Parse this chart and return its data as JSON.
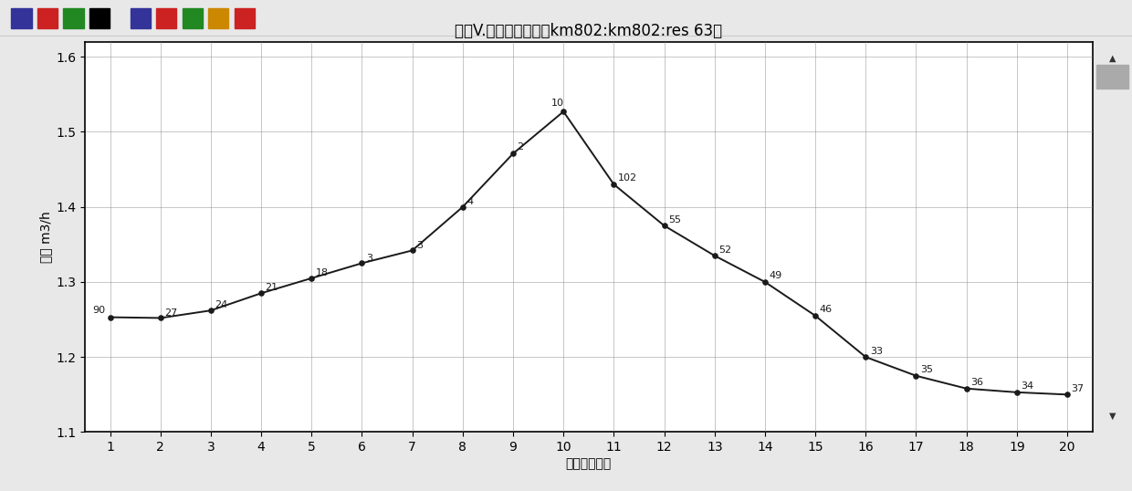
{
  "title": "流量V.胀板单元序号（km802:km802:res 63）",
  "xlabel": "胀板单元序号",
  "ylabel": "流量 m3/h",
  "xlim": [
    0.5,
    20.5
  ],
  "ylim": [
    1.1,
    1.62
  ],
  "ytick_vals": [
    1.1,
    1.2,
    1.3,
    1.4,
    1.5,
    1.6
  ],
  "ytick_labels": [
    "1 1",
    "1 2",
    "1 3",
    "1 4",
    "1 5",
    "1 6"
  ],
  "xticks": [
    1,
    2,
    3,
    4,
    5,
    6,
    7,
    8,
    9,
    10,
    11,
    12,
    13,
    14,
    15,
    16,
    17,
    18,
    19,
    20
  ],
  "x_data": [
    1,
    2,
    3,
    4,
    5,
    6,
    7,
    8,
    9,
    10,
    11,
    12,
    13,
    14,
    15,
    16,
    17,
    18,
    19,
    20
  ],
  "y_data": [
    1.253,
    1.252,
    1.262,
    1.285,
    1.305,
    1.325,
    1.342,
    1.4,
    1.471,
    1.527,
    1.43,
    1.375,
    1.335,
    1.3,
    1.255,
    1.2,
    1.175,
    1.158,
    1.153,
    1.15
  ],
  "point_labels": [
    "90",
    "27",
    "24",
    "21",
    "18",
    "3",
    "3",
    "4",
    "2",
    "10",
    "102",
    "55",
    "52",
    "49",
    "46",
    "33",
    "35",
    "36",
    "34",
    "37"
  ],
  "line_color": "#1a1a1a",
  "background_color": "#ffffff",
  "plot_bg_color": "#f5f5f5",
  "grid_color": "#888888",
  "title_fontsize": 12,
  "axis_label_fontsize": 10,
  "tick_fontsize": 10,
  "point_label_fontsize": 8,
  "toolbar_bg": "#c8c8c8",
  "scrollbar_bg": "#d0d0d0",
  "fig_bg": "#e8e8e8"
}
